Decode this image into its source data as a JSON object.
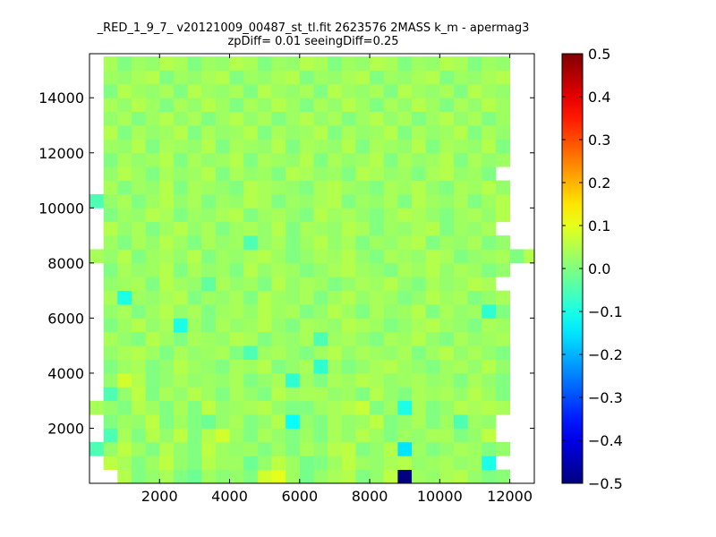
{
  "chart_data": {
    "type": "heatmap",
    "title": "_RED_1_9_7_ v20121009_00487_st_tl.fit 2623576 2MASS k_m - apermag3",
    "subtitle": "zpDiff= 0.01 seeingDiff=0.25",
    "xlabel": "",
    "ylabel": "",
    "xlim": [
      0,
      12700
    ],
    "ylim": [
      0,
      15600
    ],
    "x_ticks": [
      2000,
      4000,
      6000,
      8000,
      10000,
      12000
    ],
    "y_ticks": [
      2000,
      4000,
      6000,
      8000,
      10000,
      12000,
      14000
    ],
    "x_tick_labels": [
      "2000",
      "4000",
      "6000",
      "8000",
      "10000",
      "12000"
    ],
    "y_tick_labels": [
      "2000",
      "4000",
      "6000",
      "8000",
      "10000",
      "12000",
      "14000"
    ],
    "grid": false,
    "colormap": "jet",
    "vmin": -0.5,
    "vmax": 0.5,
    "colorbar_ticks": [
      0.5,
      0.4,
      0.3,
      0.2,
      0.1,
      0.0,
      -0.1,
      -0.2,
      -0.3,
      -0.4,
      -0.5
    ],
    "colorbar_tick_labels": [
      "0.5",
      "0.4",
      "0.3",
      "0.2",
      "0.1",
      "0.0",
      "−0.1",
      "−0.2",
      "−0.3",
      "−0.4",
      "−0.5"
    ],
    "cell_width": 400,
    "cell_height": 500,
    "grid_x_start": 0,
    "grid_y_start": 0,
    "grid_values": [
      [
        null,
        null,
        0.05,
        0.0,
        0.02,
        0.04,
        0.0,
        -0.02,
        0.03,
        0.01,
        0.02,
        0.0,
        0.08,
        0.1,
        0.03,
        -0.01,
        0.02,
        0.04,
        0.05,
        0.0,
        0.02,
        0.06,
        -0.5,
        0.03,
        0.02,
        0.04,
        0.05,
        0.02,
        0.0,
        0.01,
        null,
        null
      ],
      [
        null,
        0.06,
        0.04,
        0.0,
        0.03,
        0.06,
        0.02,
        0.0,
        0.05,
        0.03,
        0.03,
        -0.02,
        0.02,
        0.06,
        0.03,
        -0.01,
        0.0,
        0.03,
        0.06,
        0.03,
        0.02,
        0.04,
        0.05,
        0.02,
        0.03,
        0.04,
        0.02,
        0.03,
        -0.1,
        null,
        null,
        null
      ],
      [
        -0.05,
        0.02,
        0.06,
        0.03,
        0.0,
        0.05,
        0.02,
        0.0,
        0.06,
        0.03,
        0.02,
        0.03,
        0.0,
        0.03,
        0.0,
        0.04,
        0.02,
        0.05,
        0.06,
        0.0,
        0.02,
        0.05,
        -0.15,
        0.03,
        0.0,
        0.02,
        0.04,
        0.03,
        0.0,
        0.02,
        null,
        null
      ],
      [
        null,
        -0.05,
        0.04,
        0.0,
        0.05,
        0.02,
        0.06,
        0.0,
        0.05,
        0.08,
        0.03,
        0.0,
        0.04,
        0.02,
        0.0,
        0.03,
        0.0,
        0.04,
        0.02,
        0.05,
        0.03,
        0.0,
        0.03,
        0.02,
        0.04,
        0.04,
        0.0,
        0.02,
        0.06,
        null,
        null,
        null
      ],
      [
        null,
        0.0,
        0.03,
        0.02,
        0.06,
        0.0,
        0.03,
        0.0,
        -0.02,
        0.02,
        0.04,
        0.0,
        0.02,
        0.05,
        -0.12,
        0.02,
        0.0,
        0.04,
        0.02,
        0.03,
        0.06,
        0.0,
        0.02,
        0.04,
        0.0,
        0.03,
        -0.05,
        0.03,
        0.02,
        null,
        null,
        null
      ],
      [
        0.04,
        0.02,
        0.0,
        0.05,
        0.03,
        0.0,
        0.04,
        0.0,
        0.06,
        0.02,
        0.03,
        0.04,
        0.05,
        0.02,
        0.0,
        0.0,
        0.03,
        0.04,
        0.05,
        0.07,
        0.0,
        0.03,
        -0.1,
        0.04,
        0.0,
        0.02,
        0.05,
        0.04,
        0.05,
        0.04,
        null,
        null
      ],
      [
        null,
        -0.05,
        0.02,
        0.06,
        0.0,
        0.04,
        0.02,
        0.05,
        0.03,
        0.0,
        0.04,
        0.02,
        0.0,
        0.05,
        0.03,
        0.04,
        0.04,
        0.02,
        0.03,
        0.0,
        0.05,
        0.02,
        0.0,
        0.04,
        0.03,
        0.04,
        0.02,
        0.05,
        0.03,
        0.0,
        null,
        null
      ],
      [
        null,
        0.02,
        0.08,
        0.05,
        0.0,
        0.02,
        0.04,
        0.02,
        0.03,
        0.02,
        0.04,
        0.0,
        0.02,
        0.04,
        -0.08,
        0.03,
        0.0,
        0.04,
        0.03,
        0.05,
        0.04,
        0.02,
        0.03,
        0.04,
        0.02,
        0.03,
        0.0,
        0.04,
        0.02,
        0.0,
        null,
        null
      ],
      [
        null,
        0.0,
        0.03,
        0.04,
        0.0,
        0.02,
        0.05,
        0.03,
        0.02,
        0.0,
        0.04,
        0.03,
        0.05,
        0.0,
        0.02,
        0.04,
        -0.08,
        0.03,
        0.0,
        0.02,
        0.04,
        0.05,
        0.03,
        0.02,
        0.0,
        0.03,
        0.04,
        0.02,
        0.05,
        0.02,
        null,
        null
      ],
      [
        null,
        0.02,
        0.04,
        0.05,
        0.03,
        0.0,
        0.04,
        0.02,
        0.03,
        0.04,
        0.0,
        -0.05,
        0.03,
        0.04,
        0.02,
        0.0,
        0.03,
        0.05,
        0.02,
        0.04,
        0.03,
        0.02,
        0.04,
        0.0,
        0.03,
        0.05,
        0.02,
        0.04,
        0.02,
        0.0,
        null,
        null
      ],
      [
        null,
        0.04,
        0.02,
        0.0,
        0.05,
        0.03,
        0.0,
        0.04,
        0.03,
        0.02,
        0.05,
        0.04,
        0.0,
        0.03,
        0.02,
        0.04,
        -0.05,
        0.03,
        0.04,
        0.02,
        0.0,
        0.04,
        0.03,
        0.05,
        0.02,
        0.0,
        0.04,
        0.02,
        0.03,
        0.04,
        null,
        null
      ],
      [
        null,
        0.0,
        0.03,
        0.05,
        0.02,
        0.04,
        -0.1,
        0.03,
        0.0,
        0.04,
        0.02,
        0.03,
        0.05,
        0.02,
        0.0,
        0.04,
        0.03,
        0.02,
        0.05,
        0.04,
        0.03,
        0.0,
        0.02,
        0.04,
        0.05,
        0.03,
        0.02,
        0.0,
        0.04,
        0.03,
        null,
        null
      ],
      [
        null,
        0.02,
        0.04,
        0.0,
        0.03,
        0.05,
        0.02,
        0.04,
        0.0,
        0.03,
        0.04,
        0.02,
        0.05,
        0.03,
        0.04,
        0.0,
        0.02,
        0.05,
        0.03,
        0.0,
        0.04,
        0.02,
        0.03,
        0.05,
        0.0,
        0.04,
        0.02,
        0.03,
        -0.08,
        0.0,
        null,
        null
      ],
      [
        null,
        0.04,
        -0.1,
        0.03,
        0.02,
        0.04,
        0.05,
        0.0,
        0.03,
        0.02,
        0.04,
        0.0,
        0.05,
        0.03,
        0.02,
        0.04,
        0.0,
        0.03,
        0.05,
        0.02,
        0.04,
        0.03,
        0.0,
        0.02,
        0.05,
        0.03,
        0.04,
        0.0,
        0.02,
        0.04,
        null,
        null
      ],
      [
        null,
        0.02,
        0.03,
        0.04,
        0.0,
        0.05,
        0.03,
        0.02,
        -0.03,
        0.04,
        0.02,
        0.03,
        0.0,
        0.05,
        0.02,
        0.04,
        0.03,
        0.0,
        0.02,
        0.04,
        0.03,
        0.05,
        0.02,
        0.0,
        0.04,
        0.02,
        0.03,
        0.05,
        0.04,
        null,
        null,
        null
      ],
      [
        null,
        0.0,
        0.04,
        0.02,
        0.03,
        0.05,
        0.0,
        0.04,
        0.02,
        0.03,
        0.0,
        0.05,
        0.02,
        0.04,
        0.03,
        0.0,
        0.02,
        0.04,
        0.05,
        0.03,
        0.02,
        0.0,
        0.04,
        0.03,
        0.05,
        0.02,
        0.04,
        0.03,
        0.0,
        0.02,
        null,
        null
      ],
      [
        0.04,
        0.02,
        0.05,
        0.0,
        0.03,
        0.04,
        0.02,
        0.05,
        0.0,
        0.03,
        0.02,
        0.04,
        0.05,
        0.03,
        0.0,
        0.02,
        0.04,
        0.03,
        0.05,
        0.02,
        0.0,
        0.04,
        0.03,
        0.02,
        0.05,
        0.04,
        0.0,
        0.02,
        0.03,
        0.04,
        0.0,
        0.05
      ],
      [
        null,
        0.03,
        0.0,
        0.04,
        0.02,
        0.05,
        0.03,
        0.0,
        0.04,
        0.02,
        0.03,
        -0.05,
        0.02,
        0.04,
        0.0,
        0.03,
        0.05,
        0.02,
        0.04,
        0.0,
        0.03,
        0.02,
        0.04,
        0.05,
        0.0,
        0.03,
        0.02,
        0.04,
        0.0,
        0.02,
        null,
        null
      ],
      [
        null,
        0.05,
        0.02,
        0.04,
        0.0,
        0.03,
        0.05,
        0.02,
        0.04,
        0.0,
        0.03,
        0.04,
        0.02,
        0.05,
        0.0,
        0.04,
        0.03,
        0.02,
        0.05,
        0.04,
        0.0,
        0.03,
        0.02,
        0.04,
        0.05,
        0.0,
        0.03,
        0.02,
        0.04,
        null,
        null,
        null
      ],
      [
        null,
        0.0,
        0.03,
        0.02,
        0.05,
        0.04,
        0.0,
        0.03,
        0.02,
        0.04,
        0.05,
        0.0,
        0.03,
        0.04,
        0.02,
        0.0,
        0.05,
        0.03,
        0.04,
        0.02,
        0.0,
        0.03,
        0.05,
        0.04,
        0.02,
        0.0,
        0.03,
        0.04,
        0.02,
        0.05,
        null,
        null
      ],
      [
        -0.05,
        0.02,
        0.04,
        0.0,
        0.03,
        0.05,
        0.02,
        0.04,
        0.0,
        0.03,
        0.02,
        0.05,
        0.04,
        0.0,
        0.03,
        0.02,
        0.04,
        0.05,
        0.0,
        0.03,
        0.02,
        0.04,
        0.0,
        0.05,
        0.03,
        0.02,
        0.04,
        0.0,
        0.03,
        0.05,
        null,
        null
      ],
      [
        null,
        0.04,
        0.0,
        0.03,
        0.02,
        0.05,
        0.0,
        0.04,
        0.03,
        0.02,
        0.0,
        0.05,
        0.04,
        0.03,
        0.02,
        0.0,
        0.04,
        0.05,
        0.03,
        0.02,
        0.0,
        0.04,
        0.03,
        0.05,
        0.02,
        0.0,
        0.04,
        0.03,
        0.05,
        0.02,
        null,
        null
      ],
      [
        null,
        0.02,
        0.05,
        0.03,
        0.0,
        0.04,
        0.02,
        0.03,
        0.05,
        0.0,
        0.04,
        0.02,
        0.03,
        0.0,
        0.05,
        0.04,
        0.02,
        0.03,
        0.0,
        0.05,
        0.04,
        0.02,
        0.03,
        0.0,
        0.04,
        0.05,
        0.02,
        0.03,
        0.0,
        null,
        null,
        null
      ],
      [
        null,
        0.0,
        0.04,
        0.02,
        0.03,
        0.05,
        0.0,
        0.04,
        0.02,
        0.03,
        0.05,
        0.0,
        0.04,
        0.03,
        0.02,
        0.05,
        0.0,
        0.04,
        0.02,
        0.03,
        0.05,
        0.0,
        0.04,
        0.02,
        0.03,
        0.05,
        0.0,
        0.04,
        0.02,
        0.03,
        null,
        null
      ],
      [
        null,
        0.03,
        0.02,
        0.05,
        0.0,
        0.04,
        0.03,
        0.02,
        0.05,
        0.0,
        0.04,
        0.03,
        0.02,
        0.05,
        0.0,
        0.04,
        0.03,
        0.02,
        0.05,
        0.0,
        0.04,
        0.03,
        0.02,
        0.05,
        0.0,
        0.04,
        0.03,
        0.02,
        0.05,
        0.0,
        null,
        null
      ],
      [
        null,
        0.05,
        0.0,
        0.04,
        0.02,
        0.03,
        0.05,
        0.0,
        0.04,
        0.02,
        0.03,
        0.05,
        0.0,
        0.04,
        0.02,
        0.03,
        0.05,
        0.0,
        0.04,
        0.02,
        0.03,
        0.05,
        0.0,
        0.04,
        0.02,
        0.03,
        0.05,
        0.0,
        0.04,
        0.02,
        null,
        null
      ],
      [
        null,
        0.02,
        0.04,
        0.0,
        0.03,
        0.05,
        0.02,
        0.04,
        0.0,
        0.03,
        0.05,
        0.02,
        0.04,
        0.0,
        0.03,
        0.05,
        0.02,
        0.04,
        0.0,
        0.03,
        0.05,
        0.02,
        0.04,
        0.0,
        0.03,
        0.05,
        0.02,
        0.04,
        0.0,
        0.03,
        null,
        null
      ],
      [
        null,
        0.04,
        0.02,
        0.05,
        0.03,
        0.0,
        0.04,
        0.02,
        0.05,
        0.03,
        0.0,
        0.04,
        0.02,
        0.05,
        0.03,
        0.0,
        0.04,
        0.02,
        0.05,
        0.03,
        0.0,
        0.04,
        0.02,
        0.05,
        0.03,
        0.0,
        0.04,
        0.02,
        0.05,
        0.03,
        null,
        null
      ],
      [
        null,
        0.0,
        0.05,
        0.03,
        0.02,
        0.04,
        0.0,
        0.05,
        0.03,
        0.02,
        0.04,
        0.0,
        0.05,
        0.03,
        0.02,
        0.04,
        0.0,
        0.05,
        0.03,
        0.02,
        0.04,
        0.0,
        0.05,
        0.03,
        0.02,
        0.04,
        0.0,
        0.05,
        0.03,
        0.02,
        null,
        null
      ],
      [
        null,
        0.03,
        0.02,
        0.04,
        0.05,
        0.0,
        0.03,
        0.02,
        0.04,
        0.05,
        0.0,
        0.03,
        0.02,
        0.04,
        0.05,
        0.0,
        0.03,
        0.02,
        0.04,
        0.05,
        0.0,
        0.03,
        0.02,
        0.04,
        0.05,
        0.0,
        0.03,
        0.02,
        0.04,
        0.05,
        null,
        null
      ],
      [
        null,
        0.04,
        0.0,
        0.03,
        0.02,
        0.05,
        0.04,
        0.0,
        0.03,
        0.02,
        0.05,
        0.04,
        0.0,
        0.03,
        0.02,
        0.05,
        0.04,
        0.0,
        0.03,
        0.02,
        0.05,
        0.04,
        0.0,
        0.03,
        0.02,
        0.05,
        0.04,
        0.0,
        0.03,
        0.02,
        null,
        null
      ]
    ]
  }
}
